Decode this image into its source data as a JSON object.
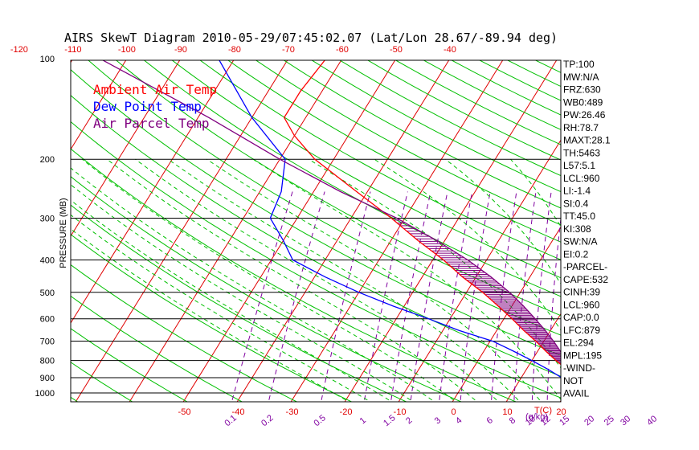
{
  "chart_data": {
    "type": "line",
    "title": "AIRS SkewT Diagram 2010-05-29/07:45:02.07 (Lat/Lon 28.67/-89.94 deg)",
    "ylabel": "PRESSURE (MB)",
    "y_scale": "log",
    "ylim": [
      1050,
      100
    ],
    "pressure_ticks": [
      "100",
      "200",
      "300",
      "400",
      "500",
      "600",
      "700",
      "800",
      "900",
      "1000"
    ],
    "isobar_levels": [
      200,
      300,
      400,
      500,
      600,
      700,
      800,
      900,
      1000
    ],
    "top_temp_ticks": [
      "-120",
      "-110",
      "-100",
      "-90",
      "-80",
      "-70",
      "-60",
      "-50",
      "-40"
    ],
    "bottom_temp_ticks": [
      "-50",
      "-40",
      "-30",
      "-20",
      "-10",
      "0",
      "10",
      "20"
    ],
    "bottom_temp_unit": "T(C)",
    "mixing_ratio_ticks": [
      "0.1",
      "0.2",
      "0.5",
      "1",
      "1.5",
      "2",
      "3",
      "4",
      "6",
      "8",
      "10",
      "12",
      "15",
      "20",
      "25",
      "30",
      "40"
    ],
    "mixing_ratio_unit": "(g/kg)",
    "legend": [
      {
        "label": "Ambient Air Temp",
        "color": "#ff0000"
      },
      {
        "label": "Dew Point Temp",
        "color": "#0000ff"
      },
      {
        "label": "Air Parcel Temp",
        "color": "#800080"
      }
    ],
    "series": [
      {
        "name": "Ambient Air Temp",
        "color": "#ff0000",
        "points": [
          [
            1000,
            26
          ],
          [
            950,
            23
          ],
          [
            900,
            20.5
          ],
          [
            850,
            17.5
          ],
          [
            800,
            14.5
          ],
          [
            750,
            11.5
          ],
          [
            700,
            8.5
          ],
          [
            650,
            5
          ],
          [
            600,
            1.5
          ],
          [
            550,
            -2.5
          ],
          [
            500,
            -7
          ],
          [
            450,
            -12.5
          ],
          [
            400,
            -18
          ],
          [
            350,
            -25
          ],
          [
            300,
            -32.5
          ],
          [
            250,
            -42
          ],
          [
            200,
            -53.5
          ],
          [
            170,
            -60
          ],
          [
            150,
            -64
          ],
          [
            125,
            -64
          ],
          [
            100,
            -63
          ]
        ]
      },
      {
        "name": "Dew Point Temp",
        "color": "#0000ff",
        "points": [
          [
            1000,
            20.5
          ],
          [
            975,
            20
          ],
          [
            950,
            19.5
          ],
          [
            900,
            17.5
          ],
          [
            850,
            14
          ],
          [
            800,
            10
          ],
          [
            750,
            5.5
          ],
          [
            700,
            0.5
          ],
          [
            650,
            -7
          ],
          [
            600,
            -14
          ],
          [
            550,
            -22
          ],
          [
            500,
            -30
          ],
          [
            450,
            -38
          ],
          [
            400,
            -46
          ],
          [
            350,
            -50
          ],
          [
            300,
            -55
          ],
          [
            250,
            -56
          ],
          [
            200,
            -59
          ],
          [
            150,
            -70
          ],
          [
            100,
            -83
          ]
        ]
      },
      {
        "name": "Air Parcel Temp",
        "color": "#800080",
        "points": [
          [
            1000,
            26
          ],
          [
            950,
            23
          ],
          [
            900,
            20.5
          ],
          [
            850,
            18.5
          ],
          [
            800,
            16.5
          ],
          [
            750,
            14.2
          ],
          [
            700,
            11.8
          ],
          [
            650,
            9
          ],
          [
            600,
            5.8
          ],
          [
            550,
            2.2
          ],
          [
            500,
            -2
          ],
          [
            450,
            -7.2
          ],
          [
            400,
            -13.5
          ],
          [
            350,
            -21.5
          ],
          [
            300,
            -31.5
          ],
          [
            250,
            -45
          ],
          [
            200,
            -60
          ],
          [
            150,
            -78
          ],
          [
            100,
            -105
          ]
        ]
      }
    ],
    "indices": [
      "TP:100",
      "MW:N/A",
      "FRZ:630",
      "WB0:489",
      "PW:26.46",
      "RH:78.7",
      "MAXT:28.1",
      "TH:5463",
      "L57:5.1",
      "LCL:960",
      "LI:-1.4",
      "SI:0.4",
      "TT:45.0",
      "KI:308",
      "SW:N/A",
      "EI:0.2",
      "-PARCEL-",
      "CAPE:532",
      "CINH:39",
      "LCL:960",
      "CAP:0.0",
      "LFC:879",
      "EL:294",
      "MPL:195",
      "-WIND-",
      "NOT",
      "AVAIL"
    ]
  }
}
